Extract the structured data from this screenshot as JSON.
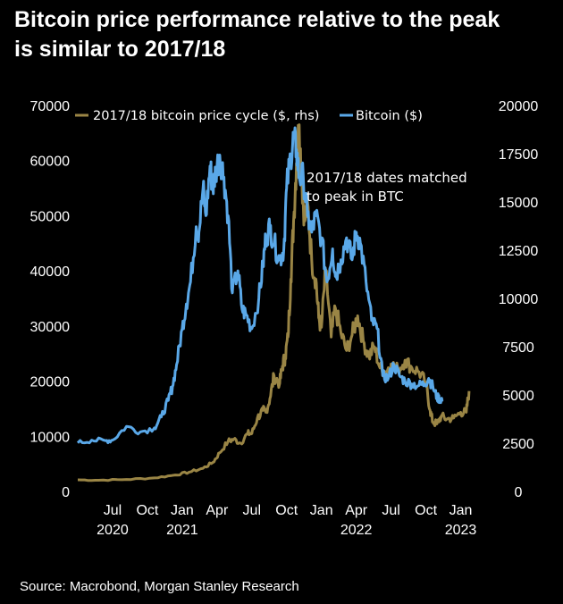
{
  "title_line1": "Bitcoin price performance relative to the peak",
  "title_line2": "is similar to 2017/18",
  "source": "Source: Macrobond, Morgan Stanley Research",
  "annotation_line1": "2017/18 dates matched",
  "annotation_line2": "to peak in BTC",
  "colors": {
    "bitcoin": "#5aa8e8",
    "cycle": "#9a8545",
    "background": "#000000",
    "text": "#ffffff"
  },
  "chart_data": {
    "type": "line",
    "legend_position": "top",
    "grid": false,
    "x_ticks": [
      {
        "month": "Jul",
        "year": "2020",
        "t": 2020.5
      },
      {
        "month": "Oct",
        "year": "",
        "t": 2020.75
      },
      {
        "month": "Jan",
        "year": "2021",
        "t": 2021.0
      },
      {
        "month": "Apr",
        "year": "",
        "t": 2021.25
      },
      {
        "month": "Jul",
        "year": "",
        "t": 2021.5
      },
      {
        "month": "Oct",
        "year": "",
        "t": 2021.75
      },
      {
        "month": "Jan",
        "year": "",
        "t": 2022.0
      },
      {
        "month": "Apr",
        "year": "2022",
        "t": 2022.25
      },
      {
        "month": "Jul",
        "year": "",
        "t": 2022.5
      },
      {
        "month": "Oct",
        "year": "",
        "t": 2022.75
      },
      {
        "month": "Jan",
        "year": "2023",
        "t": 2023.0
      }
    ],
    "xlim": [
      2020.25,
      2023.08
    ],
    "y_left": {
      "ylim": [
        0,
        70000
      ],
      "ticks": [
        0,
        10000,
        20000,
        30000,
        40000,
        50000,
        60000,
        70000
      ]
    },
    "y_right": {
      "ylim": [
        0,
        20000
      ],
      "ticks": [
        0,
        2500,
        5000,
        7500,
        10000,
        12500,
        15000,
        17500,
        20000
      ]
    },
    "series": [
      {
        "name": "2017/18 bitcoin price cycle ($, rhs)",
        "axis": "right",
        "x": [
          2020.25,
          2020.4,
          2020.6,
          2020.8,
          2020.95,
          2021.05,
          2021.15,
          2021.22,
          2021.27,
          2021.33,
          2021.37,
          2021.42,
          2021.47,
          2021.5,
          2021.54,
          2021.58,
          2021.6,
          2021.63,
          2021.66,
          2021.7,
          2021.72,
          2021.74,
          2021.76,
          2021.78,
          2021.8,
          2021.82,
          2021.84,
          2021.86,
          2021.88,
          2021.9,
          2021.93,
          2021.96,
          2021.98,
          2022.0,
          2022.03,
          2022.07,
          2022.1,
          2022.14,
          2022.18,
          2022.22,
          2022.26,
          2022.3,
          2022.34,
          2022.38,
          2022.42,
          2022.46,
          2022.5,
          2022.55,
          2022.6,
          2022.65,
          2022.7,
          2022.75,
          2022.78,
          2022.8,
          2022.83,
          2022.86,
          2022.9,
          2022.95,
          2023.0,
          2023.04,
          2023.06
        ],
        "values": [
          600,
          580,
          620,
          700,
          850,
          1000,
          1200,
          1500,
          2000,
          2600,
          2700,
          2500,
          3000,
          3000,
          3800,
          4200,
          4100,
          4800,
          6000,
          5600,
          6500,
          7000,
          8000,
          11000,
          14000,
          17000,
          19000,
          16000,
          14000,
          15000,
          12000,
          11000,
          9000,
          8500,
          11500,
          8000,
          9500,
          8200,
          7300,
          8100,
          9100,
          7800,
          7000,
          7500,
          6400,
          6200,
          6600,
          6300,
          6800,
          6400,
          6200,
          5600,
          4200,
          3600,
          3500,
          3900,
          3750,
          3800,
          4100,
          4100,
          5200
        ]
      },
      {
        "name": "Bitcoin ($)",
        "axis": "left",
        "x": [
          2020.25,
          2020.35,
          2020.45,
          2020.5,
          2020.6,
          2020.7,
          2020.8,
          2020.85,
          2020.9,
          2020.93,
          2020.96,
          2021.0,
          2021.03,
          2021.06,
          2021.1,
          2021.12,
          2021.15,
          2021.17,
          2021.2,
          2021.22,
          2021.24,
          2021.27,
          2021.3,
          2021.33,
          2021.36,
          2021.4,
          2021.43,
          2021.46,
          2021.5,
          2021.55,
          2021.58,
          2021.6,
          2021.63,
          2021.66,
          2021.7,
          2021.73,
          2021.75,
          2021.78,
          2021.8,
          2021.82,
          2021.84,
          2021.87,
          2021.9,
          2021.93,
          2021.96,
          2022.0,
          2022.04,
          2022.08,
          2022.1,
          2022.14,
          2022.18,
          2022.22,
          2022.25,
          2022.28,
          2022.32,
          2022.36,
          2022.4,
          2022.44,
          2022.48,
          2022.52,
          2022.56,
          2022.6,
          2022.65,
          2022.7,
          2022.74,
          2022.77,
          2022.8,
          2022.83,
          2022.85,
          2022.87
        ],
        "values": [
          8800,
          9300,
          9200,
          9300,
          11800,
          10800,
          11500,
          13500,
          16500,
          19000,
          23000,
          29500,
          34000,
          38000,
          48000,
          47000,
          55000,
          50000,
          59000,
          55000,
          58000,
          61000,
          57000,
          50000,
          36000,
          40000,
          33000,
          32000,
          29500,
          35000,
          41000,
          46000,
          48000,
          45000,
          42000,
          44000,
          55000,
          61000,
          64000,
          62000,
          57000,
          57000,
          50000,
          47000,
          50000,
          46000,
          38000,
          44000,
          39000,
          42000,
          46000,
          42000,
          47000,
          45000,
          38000,
          31000,
          29500,
          21000,
          20500,
          23000,
          21000,
          20000,
          19500,
          19200,
          19500,
          20500,
          19000,
          17000,
          16800,
          16600
        ]
      }
    ]
  }
}
